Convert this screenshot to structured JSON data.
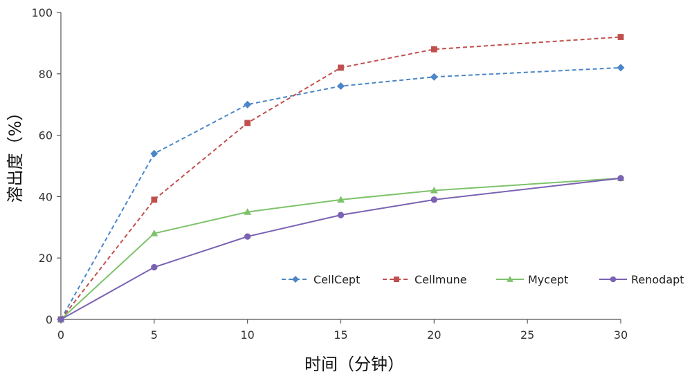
{
  "chart_data": {
    "type": "line",
    "xlabel": "时间（分钟）",
    "ylabel": "溶出度（%）",
    "xlim": [
      0,
      30
    ],
    "ylim": [
      0,
      100
    ],
    "x_ticks": [
      0,
      5,
      10,
      15,
      20,
      25,
      30
    ],
    "y_ticks": [
      0,
      20,
      40,
      60,
      80,
      100
    ],
    "grid": false,
    "legend_position": "bottom-right",
    "series": [
      {
        "name": "CellCept",
        "color": "#4a86c8",
        "dash": "dashed",
        "marker": "diamond",
        "x": [
          0,
          5,
          10,
          15,
          20,
          30
        ],
        "y": [
          0,
          54,
          70,
          76,
          79,
          82
        ]
      },
      {
        "name": "Cellmune",
        "color": "#c0504d",
        "dash": "dashed",
        "marker": "square",
        "x": [
          0,
          5,
          10,
          15,
          20,
          30
        ],
        "y": [
          0,
          39,
          64,
          82,
          88,
          92
        ]
      },
      {
        "name": "Mycept",
        "color": "#7dc26a",
        "dash": "solid",
        "marker": "triangle",
        "x": [
          0,
          5,
          10,
          15,
          20,
          30
        ],
        "y": [
          0,
          28,
          35,
          39,
          42,
          46
        ]
      },
      {
        "name": "Renodapt",
        "color": "#7b62b3",
        "dash": "solid",
        "marker": "circle",
        "x": [
          0,
          5,
          10,
          15,
          20,
          30
        ],
        "y": [
          0,
          17,
          27,
          34,
          39,
          46
        ]
      }
    ]
  }
}
